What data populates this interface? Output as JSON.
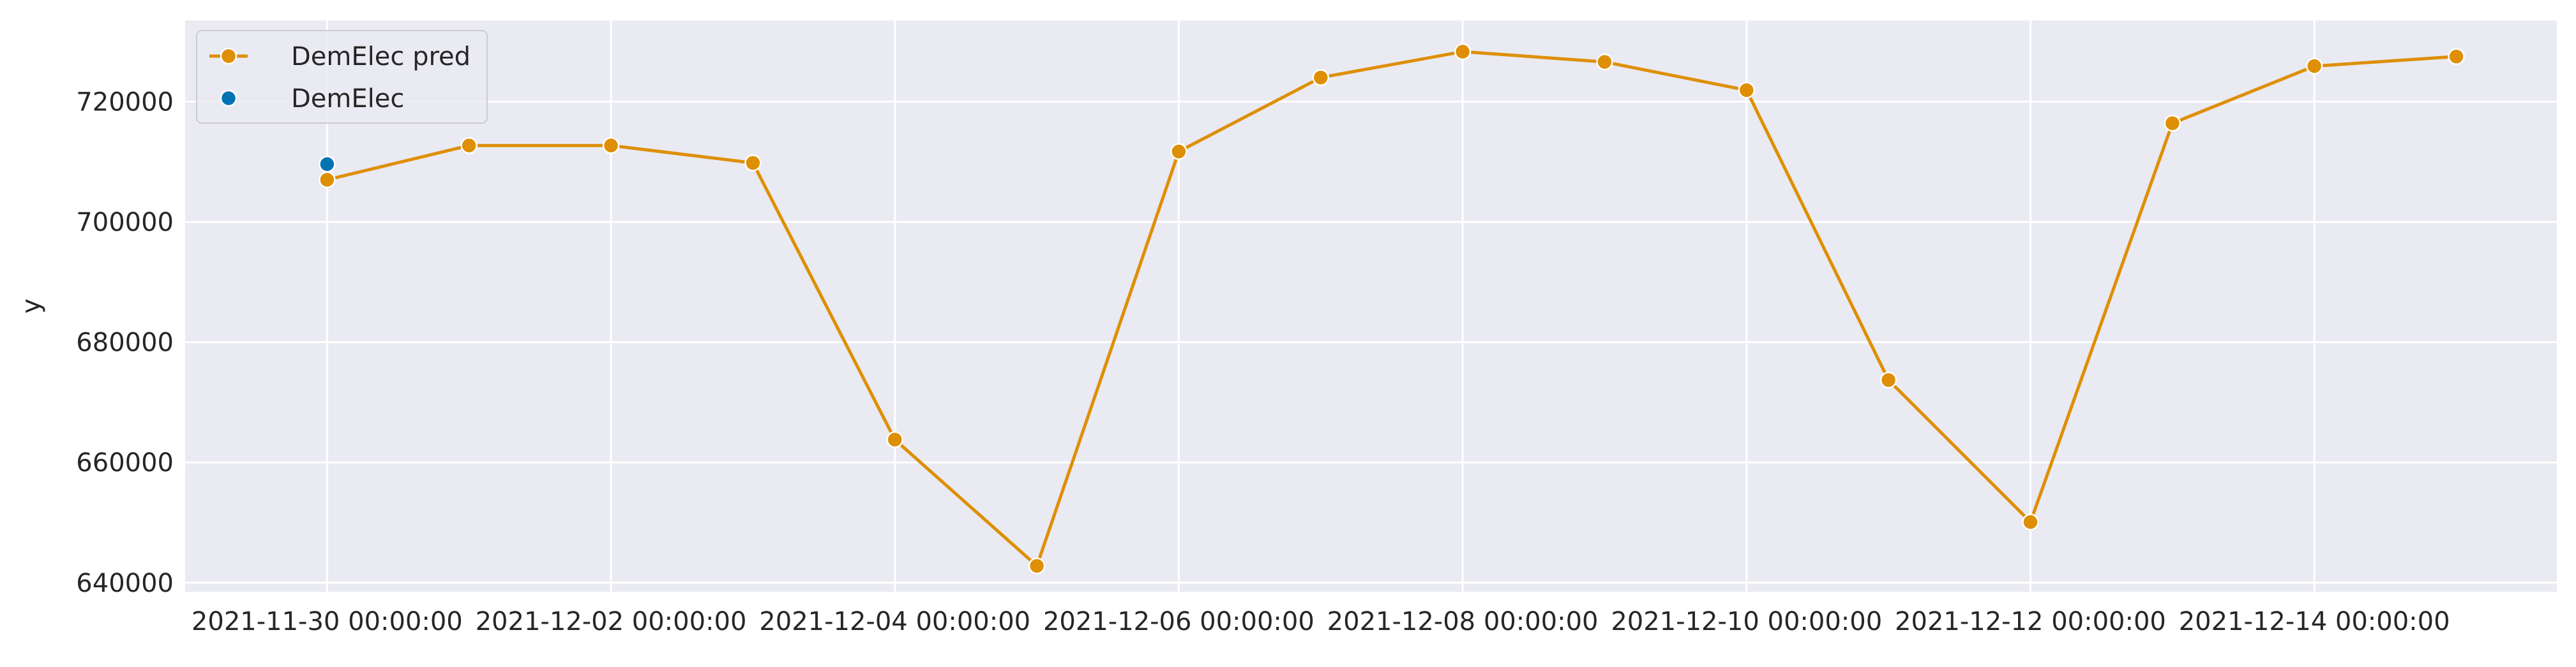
{
  "chart_data": {
    "type": "line",
    "title": "",
    "xlabel": "",
    "ylabel": "y",
    "grid": true,
    "legend_placement": "top-left",
    "background_color": "#eaeaf2",
    "x_tick_labels": [
      "2021-11-30 00:00:00",
      "2021-12-02 00:00:00",
      "2021-12-04 00:00:00",
      "2021-12-06 00:00:00",
      "2021-12-08 00:00:00",
      "2021-12-10 00:00:00",
      "2021-12-12 00:00:00",
      "2021-12-14 00:00:00"
    ],
    "y_ticks": [
      640000,
      660000,
      680000,
      700000,
      720000
    ],
    "y_tick_labels": [
      "640000",
      "660000",
      "680000",
      "700000",
      "720000"
    ],
    "ylim": [
      638500,
      733500
    ],
    "xlim": [
      "2021-11-29 00:00:00",
      "2021-12-15 17:00:00"
    ],
    "series": [
      {
        "name": "DemElec pred",
        "color": "#de8f05",
        "style": "line-with-markers",
        "points": [
          {
            "x": "2021-11-30 00:00:00",
            "y": 707000
          },
          {
            "x": "2021-12-01 00:00:00",
            "y": 712700
          },
          {
            "x": "2021-12-02 00:00:00",
            "y": 712700
          },
          {
            "x": "2021-12-03 00:00:00",
            "y": 709800
          },
          {
            "x": "2021-12-04 00:00:00",
            "y": 663800
          },
          {
            "x": "2021-12-05 00:00:00",
            "y": 642800
          },
          {
            "x": "2021-12-06 00:00:00",
            "y": 711700
          },
          {
            "x": "2021-12-07 00:00:00",
            "y": 724000
          },
          {
            "x": "2021-12-08 00:00:00",
            "y": 728300
          },
          {
            "x": "2021-12-09 00:00:00",
            "y": 726600
          },
          {
            "x": "2021-12-10 00:00:00",
            "y": 721900
          },
          {
            "x": "2021-12-11 00:00:00",
            "y": 673700
          },
          {
            "x": "2021-12-12 00:00:00",
            "y": 650100
          },
          {
            "x": "2021-12-13 00:00:00",
            "y": 716400
          },
          {
            "x": "2021-12-14 00:00:00",
            "y": 725900
          },
          {
            "x": "2021-12-15 00:00:00",
            "y": 727500
          }
        ]
      },
      {
        "name": "DemElec",
        "color": "#0173b2",
        "style": "scatter",
        "points": [
          {
            "x": "2021-11-30 00:00:00",
            "y": 709600
          }
        ]
      }
    ]
  }
}
